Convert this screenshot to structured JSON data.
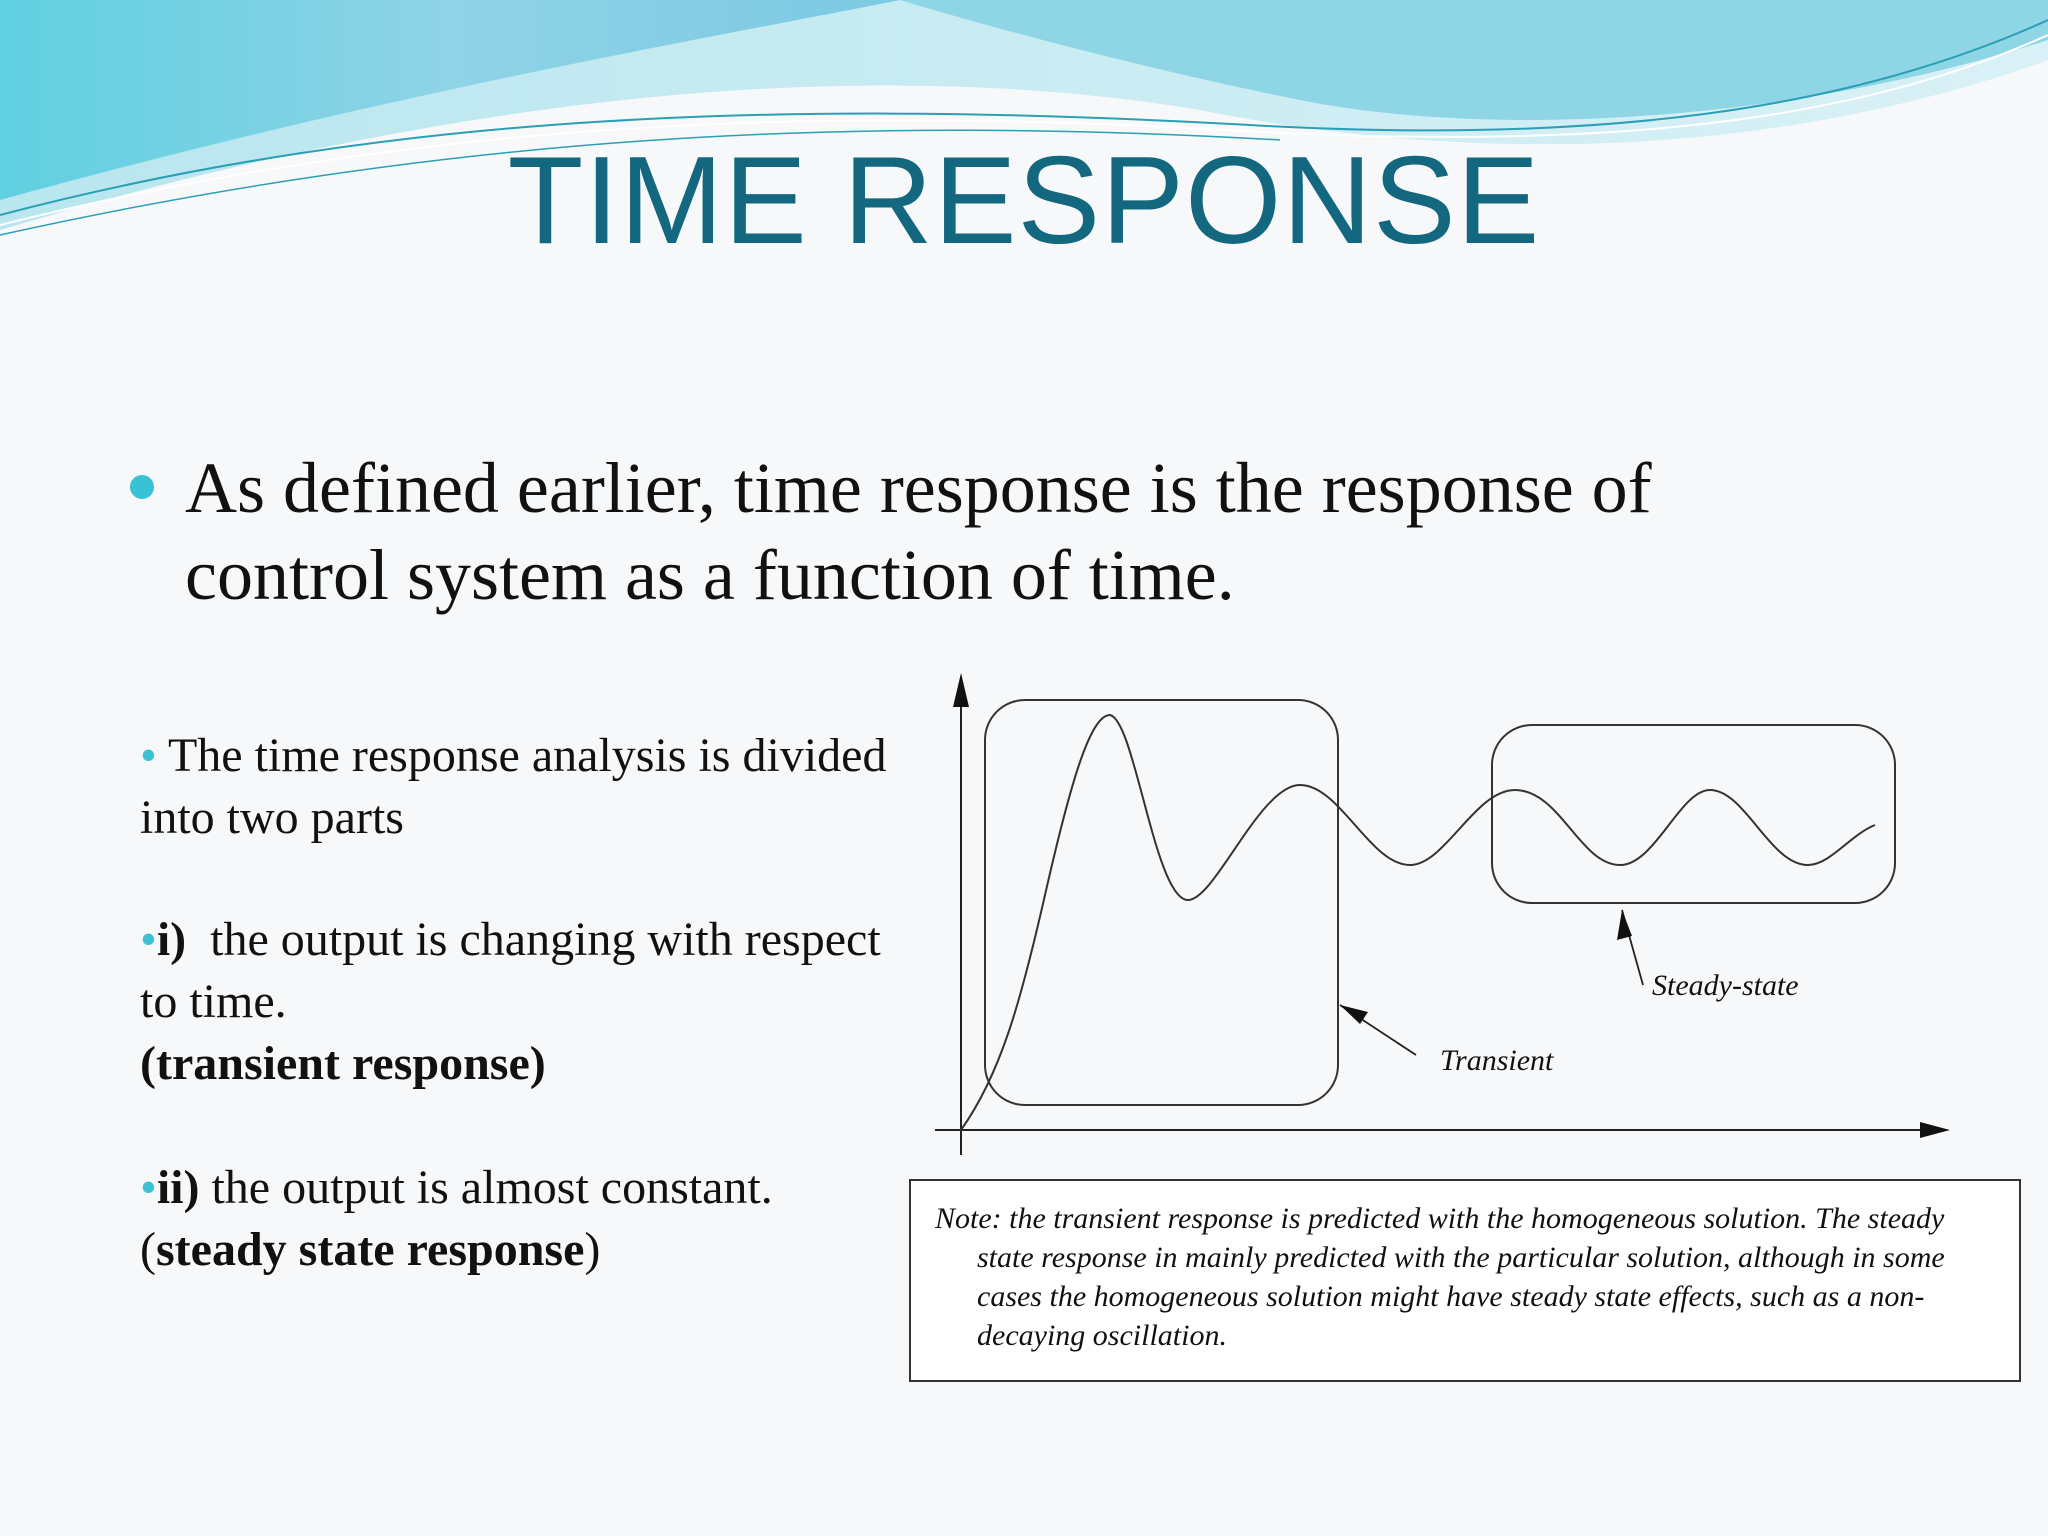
{
  "slide": {
    "title": "TIME RESPONSE",
    "main_bullet": "As defined earlier, time response is the response of control system as a function of time.",
    "sub_intro": "The time response analysis is divided into two parts",
    "part1": {
      "marker": "i)",
      "text": "the output is changing with respect to time.",
      "label": "(transient response)"
    },
    "part2": {
      "marker": "ii)",
      "text": "the output is almost constant.",
      "label_open": "(",
      "label_bold": "steady state response",
      "label_close": ")"
    }
  },
  "diagram": {
    "labels": {
      "transient": "Transient",
      "steady_state": "Steady-state"
    },
    "note": "Note: the transient response is predicted with the homogeneous solution. The steady state response in mainly predicted with the particular solution, although in some cases the homogeneous solution might have steady state effects, such as a non-decaying oscillation."
  },
  "theme": {
    "title_color": "#13687f",
    "accent": "#39c2d6"
  }
}
